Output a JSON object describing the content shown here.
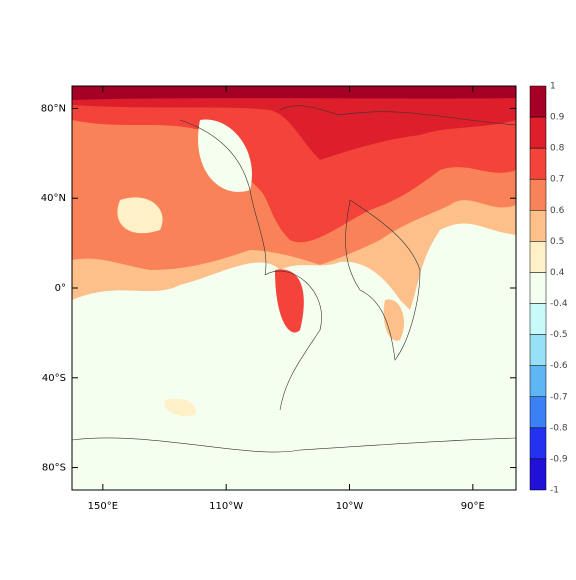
{
  "map": {
    "xlim": [
      125,
      485
    ],
    "ylim": [
      -90,
      90
    ],
    "xticks": [
      {
        "value": 150,
        "label": "150°E"
      },
      {
        "value": 250,
        "label": "110°W"
      },
      {
        "value": 350,
        "label": "10°W"
      },
      {
        "value": 450,
        "label": "90°E"
      }
    ],
    "yticks": [
      {
        "value": 80,
        "label": "80°N"
      },
      {
        "value": 40,
        "label": "40°N"
      },
      {
        "value": 0,
        "label": "0°"
      },
      {
        "value": -40,
        "label": "40°S"
      },
      {
        "value": -80,
        "label": "80°S"
      }
    ],
    "colorbar": {
      "levels": [
        1,
        0.9,
        0.8,
        0.7,
        0.6,
        0.5,
        0.4,
        -0.4,
        -0.5,
        -0.6,
        -0.7,
        -0.8,
        -0.9,
        -1
      ],
      "colors": [
        "#a50026",
        "#dc1f2a",
        "#f4433a",
        "#fa8258",
        "#fdc08a",
        "#fff0c8",
        "#f5fff0",
        "#c8fafa",
        "#96e0f8",
        "#5fb6f5",
        "#3c80f5",
        "#2232f0",
        "#2010d8"
      ]
    }
  }
}
